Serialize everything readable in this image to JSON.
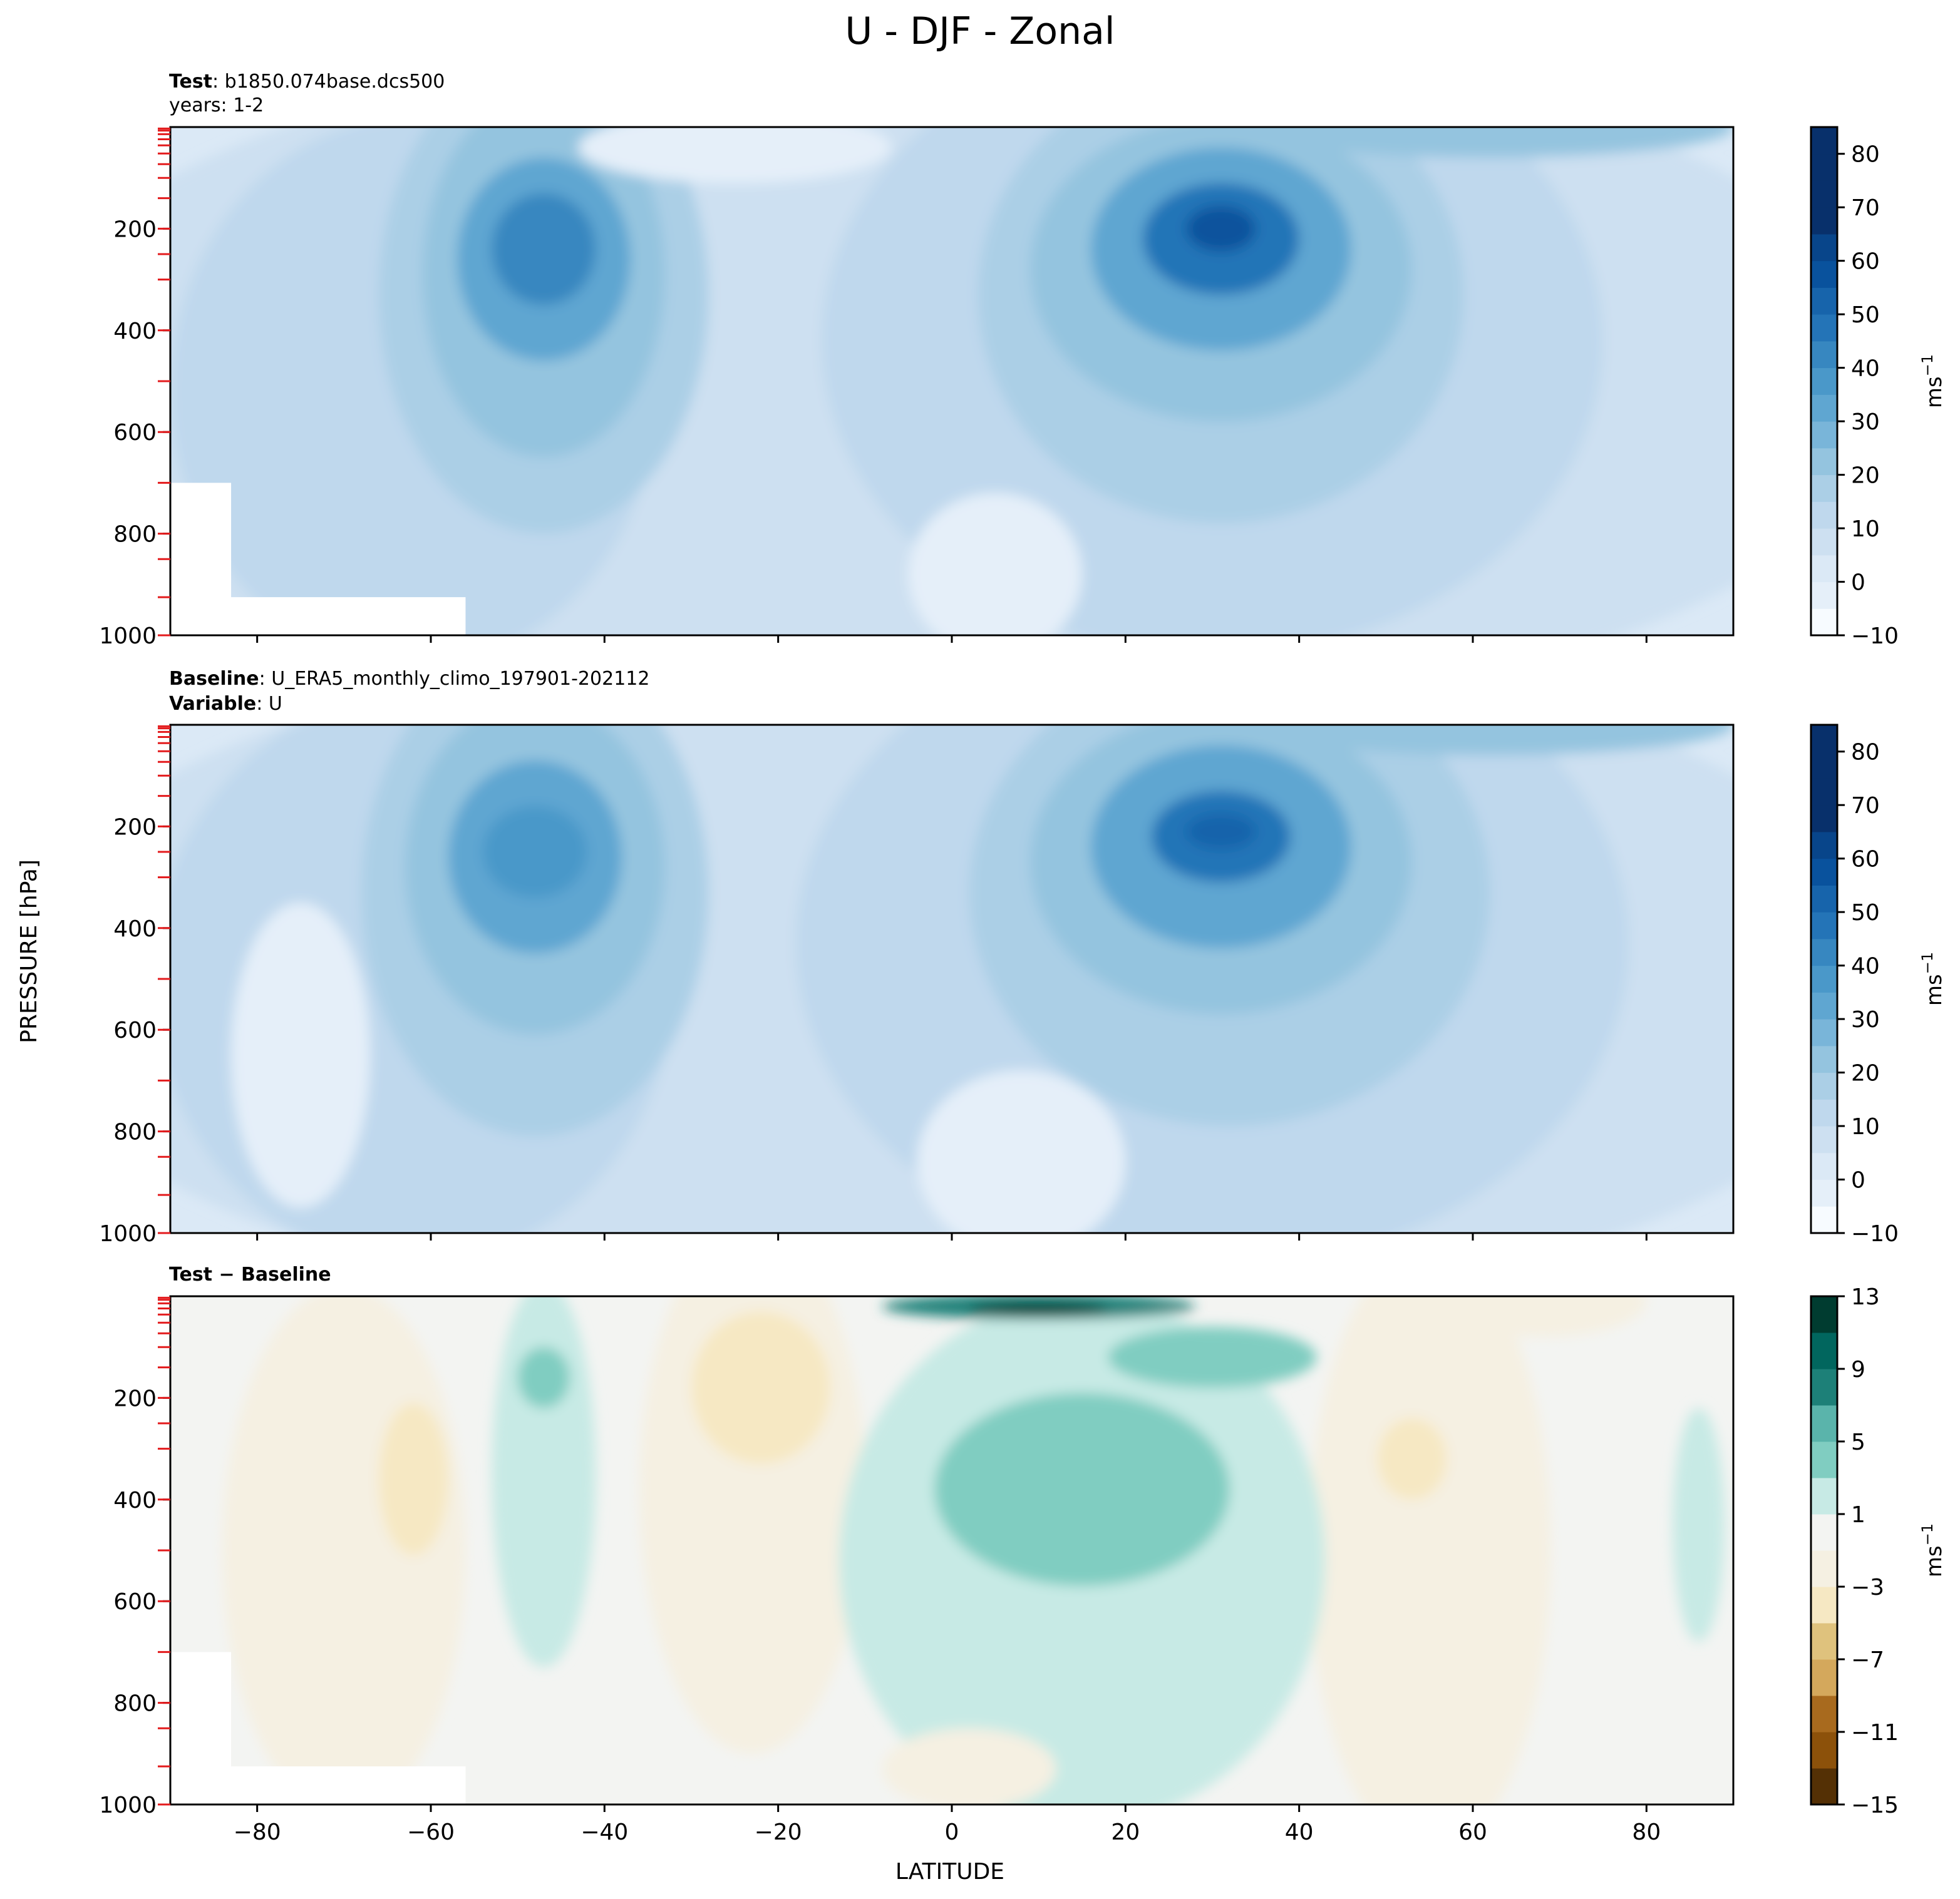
{
  "figure": {
    "title": "U - DJF - Zonal",
    "xlabel": "LATITUDE",
    "ylabel": "PRESSURE [hPa]",
    "colors": {
      "blues": [
        "#f7fbff",
        "#e5eff9",
        "#dbe9f6",
        "#cde0f1",
        "#bfd8ed",
        "#abcfe6",
        "#94c4df",
        "#79b5d9",
        "#5fa6d1",
        "#4a98c9",
        "#3787c0",
        "#2474b7",
        "#1764ab",
        "#09529d",
        "#08458a",
        "#08306b"
      ],
      "diverging": [
        "#543005",
        "#6f3f07",
        "#8c510a",
        "#a86a1e",
        "#bf812d",
        "#d4a85c",
        "#dfc27d",
        "#ecd7a5",
        "#f6e8c3",
        "#f5f0e2",
        "#f5f5f5",
        "#e4f2f0",
        "#c7eae5",
        "#a3dbd2",
        "#80cdc1",
        "#5ab4ab",
        "#35978f",
        "#1d8078",
        "#01665e",
        "#014f46",
        "#003c30"
      ],
      "tick_marker": "#e31a1c"
    },
    "chart_data": [
      {
        "type": "contourf",
        "panel": "test",
        "header_line1_bold": "Test",
        "header_line1_text": ": b1850.074base.dcs500",
        "header_line2": "years: 1-2",
        "xlim": [
          -90,
          90
        ],
        "ylim": [
          1000,
          0
        ],
        "x_ticks": [
          -80,
          -60,
          -40,
          -20,
          0,
          20,
          40,
          60,
          80
        ],
        "y_ticks": [
          200,
          400,
          600,
          800,
          1000
        ],
        "y_tick_labels": [
          "200",
          "400",
          "600",
          "800",
          "1000"
        ],
        "model_levels_hPa": [
          3,
          7,
          14,
          24,
          36,
          52,
          73,
          100,
          140,
          200,
          250,
          300,
          400,
          500,
          600,
          700,
          800,
          850,
          925,
          1000
        ],
        "colorbar": {
          "label": "ms",
          "label_sup": "−1",
          "ticks": [
            -10,
            0,
            10,
            20,
            30,
            40,
            50,
            60,
            70,
            80
          ],
          "tick_labels": [
            "−10",
            "0",
            "10",
            "20",
            "30",
            "40",
            "50",
            "60",
            "70",
            "80"
          ],
          "min": -10,
          "max": 85,
          "step": 5
        },
        "features": {
          "sh_jet": {
            "lat": -47,
            "p": 240,
            "u": 40
          },
          "nh_jet": {
            "lat": 31,
            "p": 200,
            "u": 55
          },
          "surface_masked": {
            "lat_max": -56,
            "p_min": 925
          }
        }
      },
      {
        "type": "contourf",
        "panel": "baseline",
        "header_line1_bold": "Baseline",
        "header_line1_text": ": U_ERA5_monthly_climo_197901-202112",
        "header_line2_bold": "Variable",
        "header_line2_text": ": U",
        "xlim": [
          -90,
          90
        ],
        "ylim": [
          1000,
          0
        ],
        "x_ticks": [
          -80,
          -60,
          -40,
          -20,
          0,
          20,
          40,
          60,
          80
        ],
        "y_ticks": [
          200,
          400,
          600,
          800,
          1000
        ],
        "y_tick_labels": [
          "200",
          "400",
          "600",
          "800",
          "1000"
        ],
        "model_levels_hPa": [
          3,
          7,
          14,
          24,
          36,
          52,
          73,
          100,
          140,
          200,
          250,
          300,
          400,
          500,
          600,
          700,
          800,
          850,
          925,
          1000
        ],
        "colorbar": {
          "label": "ms",
          "label_sup": "−1",
          "ticks": [
            -10,
            0,
            10,
            20,
            30,
            40,
            50,
            60,
            70,
            80
          ],
          "tick_labels": [
            "−10",
            "0",
            "10",
            "20",
            "30",
            "40",
            "50",
            "60",
            "70",
            "80"
          ],
          "min": -10,
          "max": 85,
          "step": 5
        },
        "features": {
          "sh_jet": {
            "lat": -48,
            "p": 250,
            "u": 37
          },
          "nh_jet": {
            "lat": 31,
            "p": 210,
            "u": 50
          }
        }
      },
      {
        "type": "contourf",
        "panel": "difference",
        "header_line1_bold": "Test − Baseline",
        "xlim": [
          -90,
          90
        ],
        "ylim": [
          1000,
          0
        ],
        "x_ticks": [
          -80,
          -60,
          -40,
          -20,
          0,
          20,
          40,
          60,
          80
        ],
        "x_tick_labels": [
          "−80",
          "−60",
          "−40",
          "−20",
          "0",
          "20",
          "40",
          "60",
          "80"
        ],
        "y_ticks": [
          200,
          400,
          600,
          800,
          1000
        ],
        "y_tick_labels": [
          "200",
          "400",
          "600",
          "800",
          "1000"
        ],
        "model_levels_hPa": [
          3,
          7,
          14,
          24,
          36,
          52,
          73,
          100,
          140,
          200,
          250,
          300,
          400,
          500,
          600,
          700,
          800,
          850,
          925,
          1000
        ],
        "colorbar": {
          "label": "ms",
          "label_sup": "−1",
          "ticks": [
            -15,
            -11,
            -7,
            -3,
            1,
            5,
            9,
            13
          ],
          "tick_labels": [
            "−15",
            "−11",
            "−7",
            "−3",
            "1",
            "5",
            "9",
            "13"
          ],
          "min": -15,
          "max": 13,
          "step": 2
        },
        "features": {
          "tropical_positive": {
            "lat": 15,
            "p": 400,
            "du": 4
          },
          "sh_subtropic_negative": {
            "lat": -22,
            "p": 180,
            "du": -5
          },
          "upper_tropical_max": {
            "lat": 10,
            "p": 30,
            "du": 12
          },
          "surface_masked": {
            "lat_max": -56,
            "p_min": 925
          }
        }
      }
    ]
  }
}
